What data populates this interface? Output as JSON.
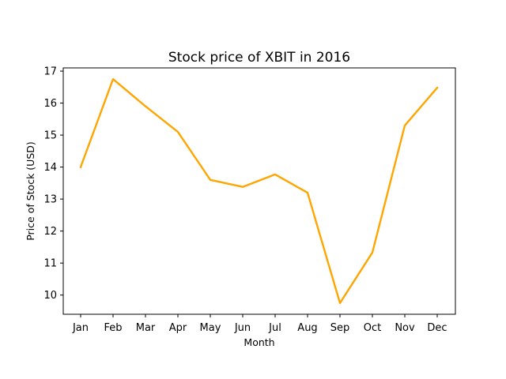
{
  "chart_data": {
    "type": "line",
    "title": "Stock price of XBIT in 2016",
    "xlabel": "Month",
    "ylabel": "Price of Stock (USD)",
    "categories": [
      "Jan",
      "Feb",
      "Mar",
      "Apr",
      "May",
      "Jun",
      "Jul",
      "Aug",
      "Sep",
      "Oct",
      "Nov",
      "Dec"
    ],
    "series": [
      {
        "values": [
          14.0,
          16.75,
          15.9,
          15.1,
          13.6,
          13.38,
          13.77,
          13.2,
          9.75,
          11.33,
          15.3,
          16.48
        ],
        "color": "#FFA500"
      }
    ],
    "yticks": [
      10,
      11,
      12,
      13,
      14,
      15,
      16,
      17
    ],
    "ylim": [
      9.4,
      17.1
    ],
    "grid": false,
    "legend": false
  }
}
